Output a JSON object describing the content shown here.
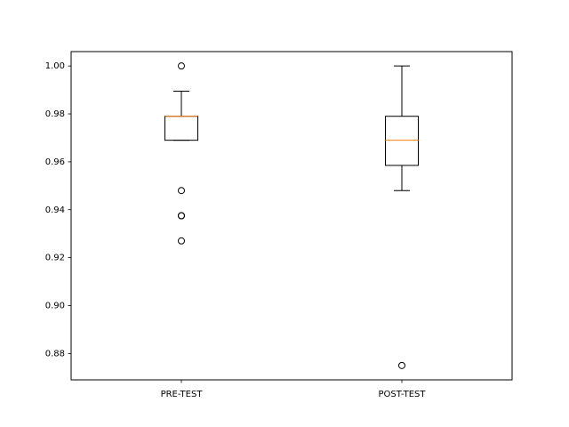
{
  "chart_data": {
    "type": "box",
    "title": "",
    "xlabel": "",
    "ylabel": "",
    "ylim": [
      0.869,
      1.006
    ],
    "yticks": [
      0.88,
      0.9,
      0.92,
      0.94,
      0.96,
      0.98,
      1.0
    ],
    "ytick_labels": [
      "0.88",
      "0.90",
      "0.92",
      "0.94",
      "0.96",
      "0.98",
      "1.00"
    ],
    "categories": [
      "PRE-TEST",
      "POST-TEST"
    ],
    "boxes": [
      {
        "category": "PRE-TEST",
        "whisker_low": 0.969,
        "q1": 0.969,
        "median": 0.979,
        "q3": 0.979,
        "whisker_high": 0.9895,
        "outliers": [
          1.0,
          0.948,
          0.9375,
          0.9375,
          0.927
        ]
      },
      {
        "category": "POST-TEST",
        "whisker_low": 0.948,
        "q1": 0.9585,
        "median": 0.969,
        "q3": 0.979,
        "whisker_high": 1.0,
        "outliers": [
          0.875
        ]
      }
    ],
    "colors": {
      "box": "#000000",
      "median": "#ff7f0e",
      "outlier": "#000000"
    },
    "grid": false
  }
}
